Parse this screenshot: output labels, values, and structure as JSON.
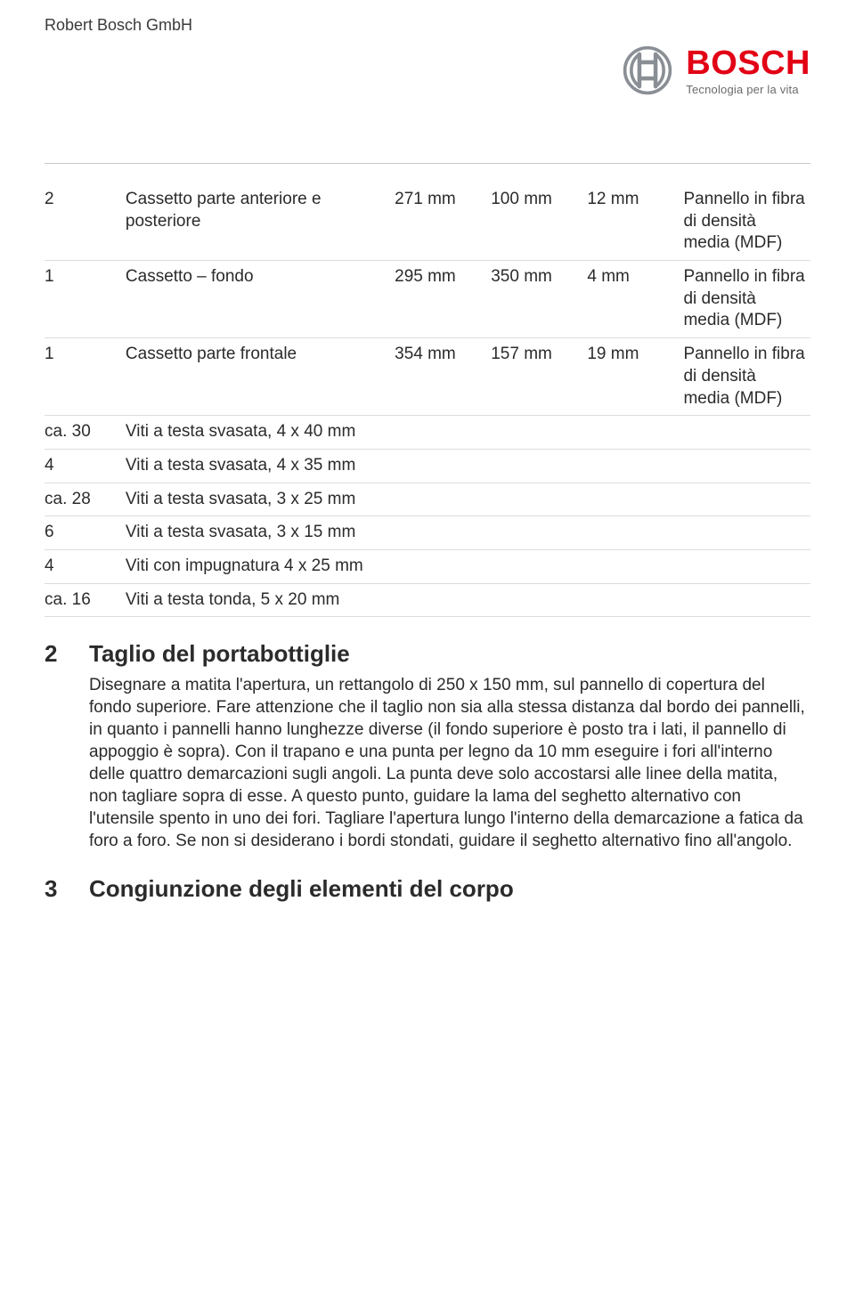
{
  "header": {
    "company": "Robert Bosch GmbH",
    "logo_word": "BOSCH",
    "logo_tagline": "Tecnologia per la vita",
    "logo_color": "#e20015",
    "logo_icon_stroke": "#8a8f95"
  },
  "table": {
    "rows": [
      {
        "qty": "2",
        "desc": "Cassetto parte anteriore e posteriore",
        "d1": "271 mm",
        "d2": "100 mm",
        "d3": "12 mm",
        "mat": "Pannello in fibra di densità media (MDF)"
      },
      {
        "qty": "1",
        "desc": "Cassetto – fondo",
        "d1": "295 mm",
        "d2": "350 mm",
        "d3": "4 mm",
        "mat": "Pannello in fibra di densità media (MDF)"
      },
      {
        "qty": "1",
        "desc": "Cassetto parte frontale",
        "d1": "354 mm",
        "d2": "157 mm",
        "d3": "19 mm",
        "mat": "Pannello in fibra di densità media (MDF)"
      },
      {
        "qty": "ca. 30",
        "desc": "Viti a testa svasata, 4 x 40 mm",
        "d1": "",
        "d2": "",
        "d3": "",
        "mat": ""
      },
      {
        "qty": "4",
        "desc": "Viti a testa svasata, 4 x 35 mm",
        "d1": "",
        "d2": "",
        "d3": "",
        "mat": ""
      },
      {
        "qty": "ca. 28",
        "desc": "Viti a testa svasata, 3 x 25 mm",
        "d1": "",
        "d2": "",
        "d3": "",
        "mat": ""
      },
      {
        "qty": "6",
        "desc": "Viti a testa svasata, 3 x 15 mm",
        "d1": "",
        "d2": "",
        "d3": "",
        "mat": ""
      },
      {
        "qty": "4",
        "desc": "Viti con impugnatura 4 x 25 mm",
        "d1": "",
        "d2": "",
        "d3": "",
        "mat": ""
      },
      {
        "qty": "ca. 16",
        "desc": "Viti a testa tonda, 5 x 20 mm",
        "d1": "",
        "d2": "",
        "d3": "",
        "mat": ""
      }
    ]
  },
  "sections": [
    {
      "num": "2",
      "title": "Taglio del portabottiglie",
      "text": "Disegnare a matita l'apertura, un rettangolo di 250 x 150 mm, sul pannello di copertura del fondo superiore. Fare attenzione che il taglio non sia alla stessa distanza dal bordo dei pannelli, in quanto i pannelli hanno lunghezze diverse (il fondo superiore è posto tra i lati, il pannello di appoggio è sopra). Con il trapano e una punta per legno da 10 mm eseguire i fori all'interno delle quattro demarcazioni sugli angoli. La punta deve solo accostarsi alle linee della matita, non tagliare sopra di esse. A questo punto, guidare la lama del seghetto alternativo con l'utensile spento in uno dei fori. Tagliare l'apertura lungo l'interno della demarcazione a fatica da foro a foro. Se non si desiderano i bordi stondati, guidare il seghetto alternativo fino all'angolo."
    },
    {
      "num": "3",
      "title": "Congiunzione degli elementi del corpo",
      "text": ""
    }
  ]
}
